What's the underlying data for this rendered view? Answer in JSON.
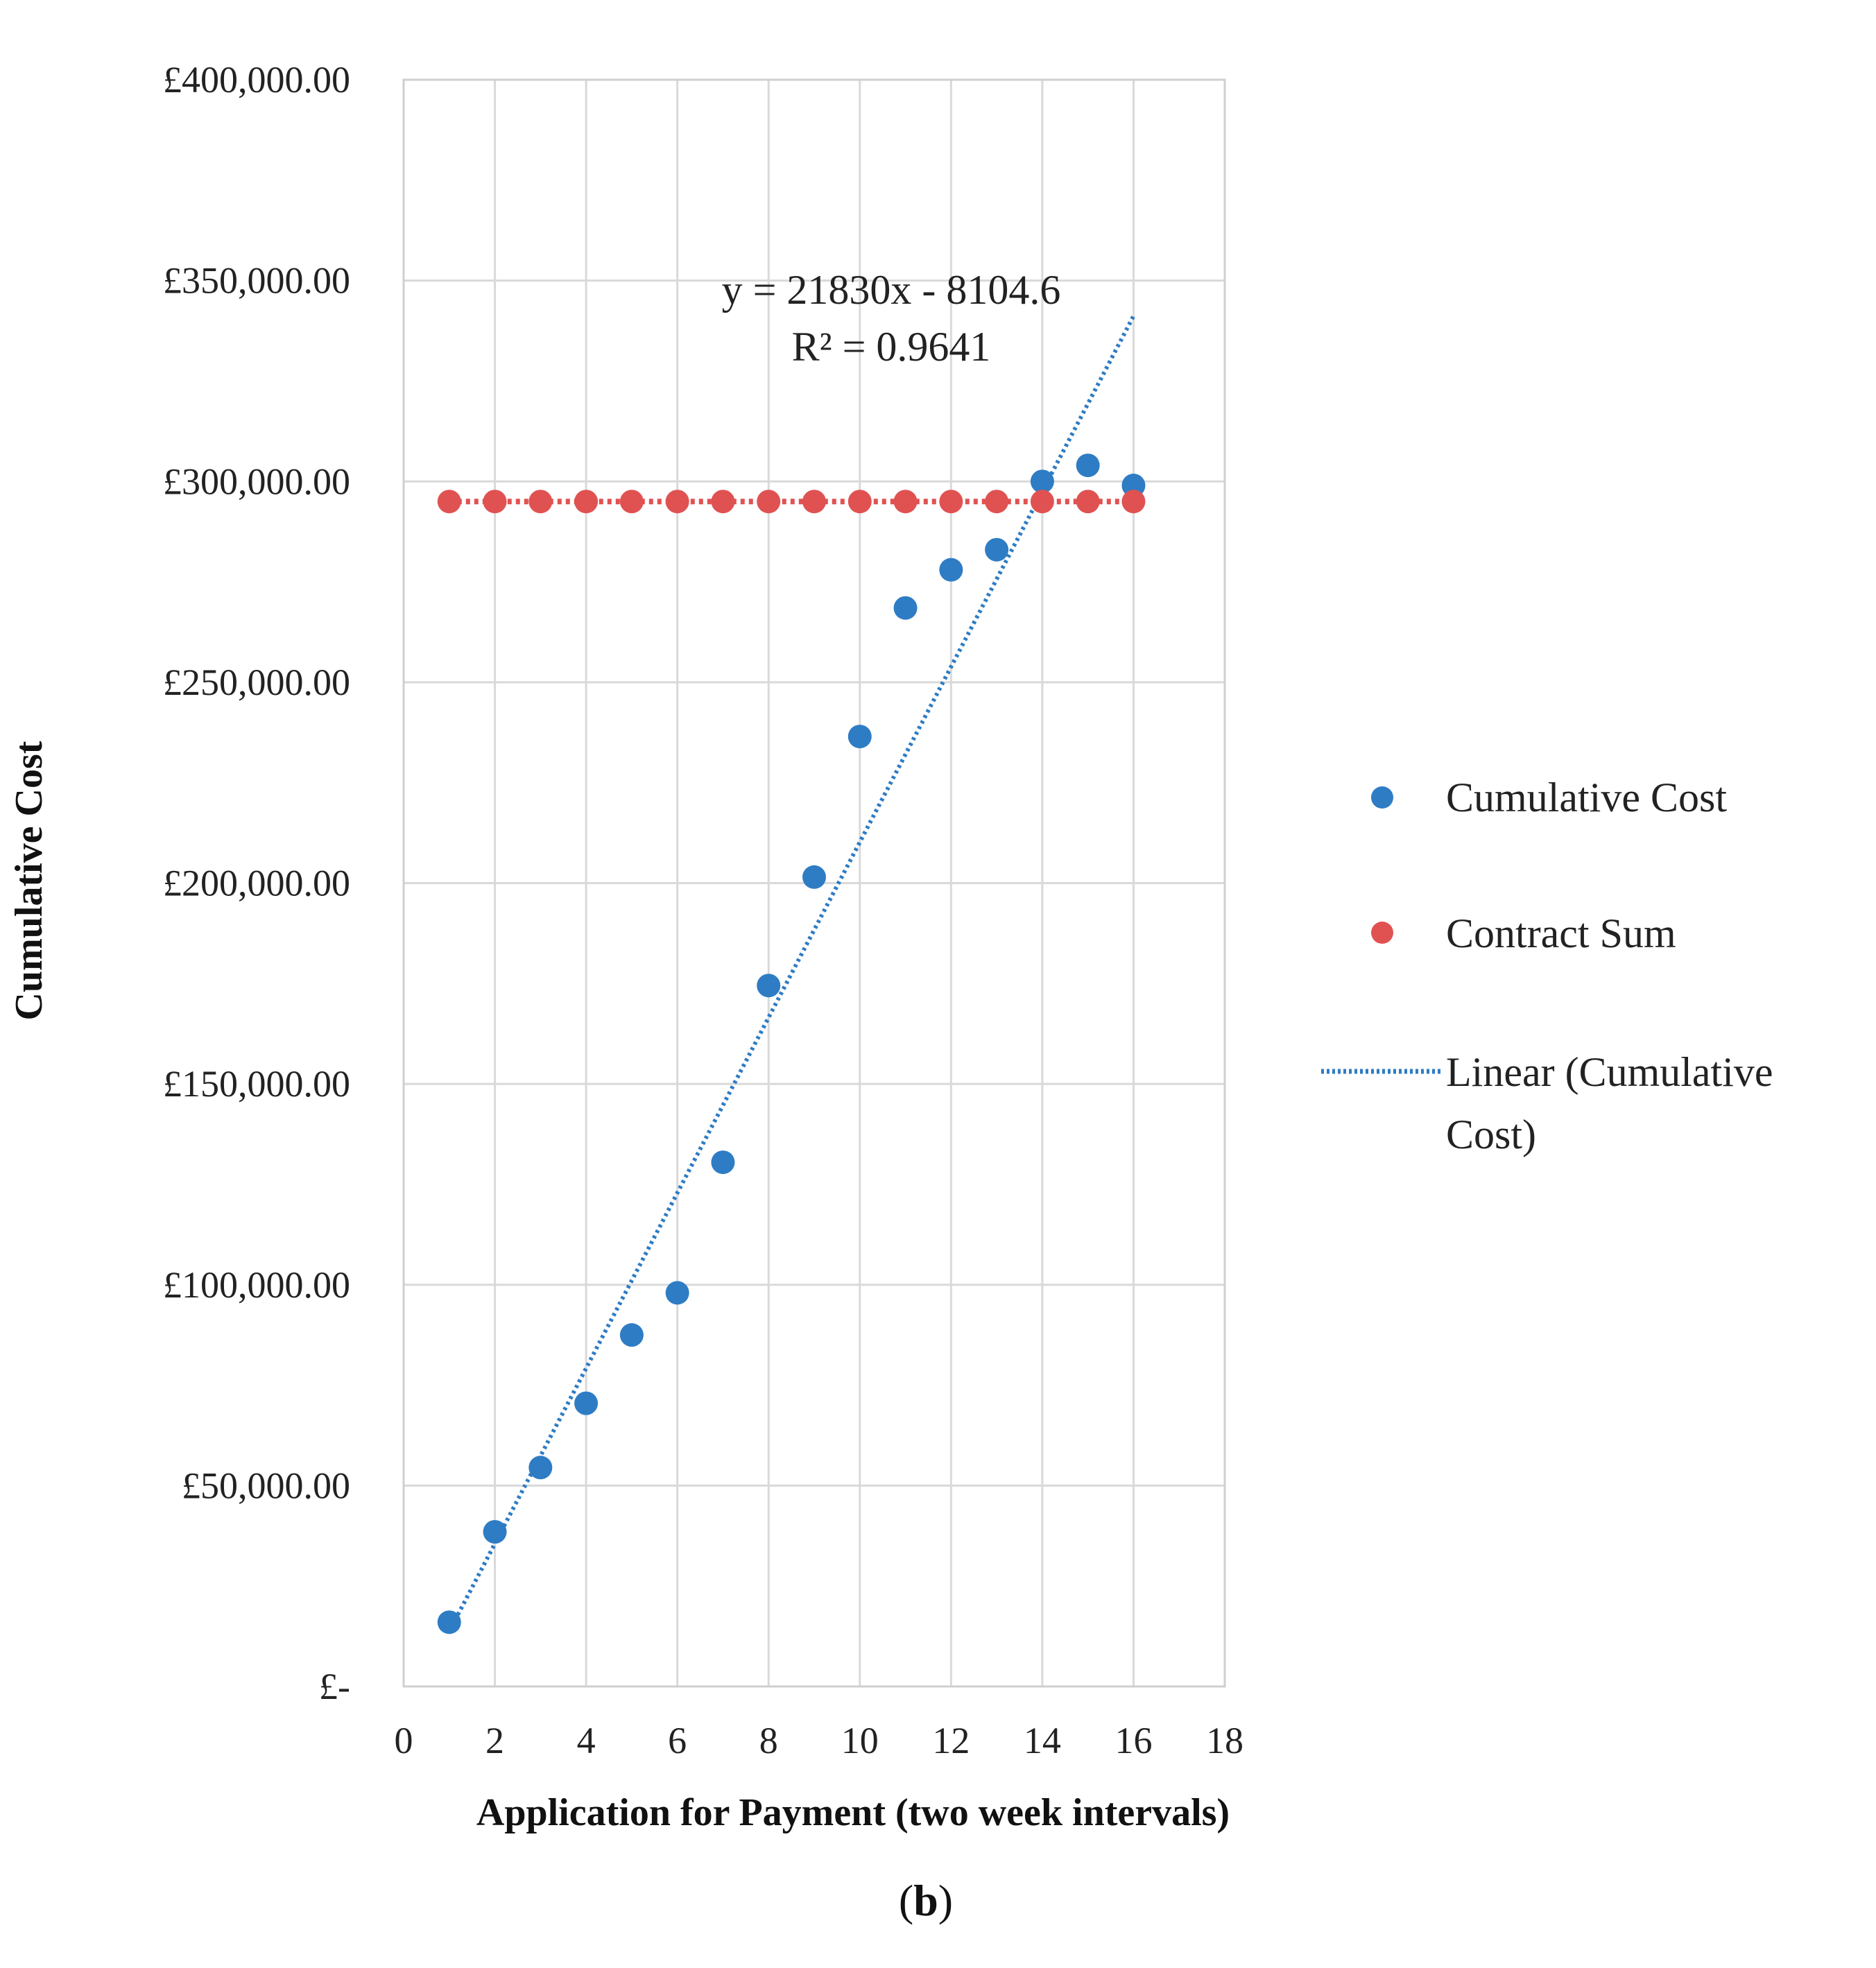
{
  "chart_data": {
    "type": "scatter",
    "title": "",
    "xlabel": "Application for Payment (two week intervals)",
    "ylabel": "Cumulative Cost",
    "xlim": [
      0,
      18
    ],
    "ylim": [
      0,
      400000
    ],
    "x_ticks": [
      {
        "value": 0,
        "label": "0"
      },
      {
        "value": 2,
        "label": "2"
      },
      {
        "value": 4,
        "label": "4"
      },
      {
        "value": 6,
        "label": "6"
      },
      {
        "value": 8,
        "label": "8"
      },
      {
        "value": 10,
        "label": "10"
      },
      {
        "value": 12,
        "label": "12"
      },
      {
        "value": 14,
        "label": "14"
      },
      {
        "value": 16,
        "label": "16"
      },
      {
        "value": 18,
        "label": "18"
      }
    ],
    "y_ticks": [
      {
        "value": 0,
        "label": "£-"
      },
      {
        "value": 50000,
        "label": "£50,000.00"
      },
      {
        "value": 100000,
        "label": "£100,000.00"
      },
      {
        "value": 150000,
        "label": "£150,000.00"
      },
      {
        "value": 200000,
        "label": "£200,000.00"
      },
      {
        "value": 250000,
        "label": "£250,000.00"
      },
      {
        "value": 300000,
        "label": "£300,000.00"
      },
      {
        "value": 350000,
        "label": "£350,000.00"
      },
      {
        "value": 400000,
        "label": "£400,000.00"
      }
    ],
    "grid": true,
    "legend_position": "right",
    "series": [
      {
        "name": "Cumulative Cost",
        "color": "#2e7cc4",
        "marker": "circle",
        "x": [
          1,
          2,
          3,
          4,
          5,
          6,
          7,
          8,
          9,
          10,
          11,
          12,
          13,
          14,
          15,
          16
        ],
        "y": [
          16000,
          38500,
          54500,
          70500,
          87500,
          98000,
          130500,
          174500,
          201500,
          236500,
          268500,
          278000,
          283000,
          300000,
          304000,
          299000
        ]
      },
      {
        "name": "Contract Sum",
        "color": "#e05252",
        "marker": "circle",
        "line": "dotted",
        "x": [
          1,
          2,
          3,
          4,
          5,
          6,
          7,
          8,
          9,
          10,
          11,
          12,
          13,
          14,
          15,
          16
        ],
        "y": [
          295000,
          295000,
          295000,
          295000,
          295000,
          295000,
          295000,
          295000,
          295000,
          295000,
          295000,
          295000,
          295000,
          295000,
          295000,
          295000
        ]
      }
    ],
    "trendline": {
      "name": "Linear (Cumulative Cost)",
      "legend_lines": [
        "Linear (Cumulative",
        "Cost)"
      ],
      "color": "#2e7cc4",
      "slope": 21830,
      "intercept": -8104.6,
      "x_range": [
        1,
        16
      ],
      "equation": "y = 21830x - 8104.6",
      "r_squared": "R² = 0.9641"
    },
    "panel_label": "(b)"
  }
}
